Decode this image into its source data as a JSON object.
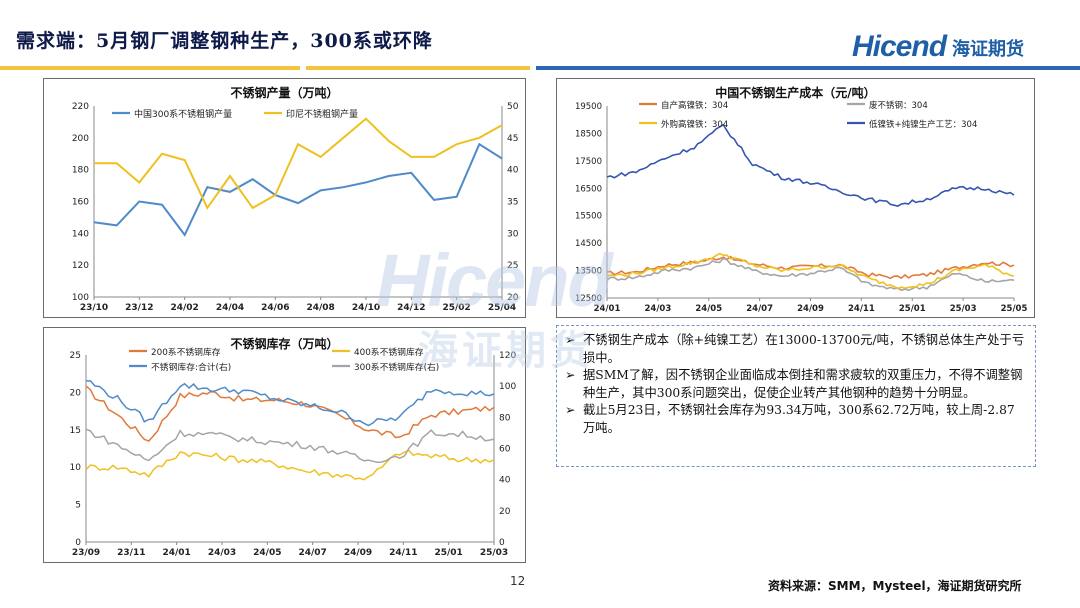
{
  "header": {
    "title": "需求端：5月钢厂调整钢种生产，300系或环降",
    "logo_en": "Hicend",
    "logo_cn": "海证期货"
  },
  "watermark": {
    "en": "Hicend",
    "cn": "海证期货"
  },
  "colors": {
    "blue": "#4f8ac9",
    "yellow": "#f0c020",
    "orange": "#e07a3a",
    "gray": "#a5a5a5",
    "darkblue": "#3456b0",
    "band_yellow": "#f5c342",
    "band_blue": "#2b67b3"
  },
  "charts": {
    "production": {
      "type": "line",
      "title": "不锈钢产量（万吨）",
      "x_labels": [
        "23/10",
        "23/12",
        "24/02",
        "24/04",
        "24/06",
        "24/08",
        "24/10",
        "24/12",
        "25/02",
        "25/04"
      ],
      "y_left": {
        "min": 100,
        "max": 220,
        "ticks": [
          "220",
          "200",
          "180",
          "160",
          "140",
          "120",
          "100"
        ]
      },
      "y_right": {
        "min": 20,
        "max": 50,
        "ticks": [
          "50",
          "45",
          "40",
          "35",
          "30",
          "25",
          "20"
        ]
      },
      "series": [
        {
          "name": "中国300系不锈粗钢产量",
          "axis": "left",
          "color": "#4f8ac9",
          "values": [
            147,
            145,
            160,
            158,
            139,
            169,
            166,
            174,
            164,
            159,
            167,
            169,
            172,
            176,
            178,
            161,
            163,
            196,
            187
          ]
        },
        {
          "name": "印尼不锈粗钢产量",
          "axis": "right",
          "color": "#f0c020",
          "values": [
            41,
            41,
            38,
            42.5,
            41.5,
            34,
            39,
            34,
            36,
            44,
            42,
            45,
            48,
            44.5,
            42,
            42,
            44,
            45,
            47
          ]
        }
      ]
    },
    "cost": {
      "type": "line",
      "title": "中国不锈钢生产成本（元/吨）",
      "x_labels": [
        "24/01",
        "24/03",
        "24/05",
        "24/07",
        "24/09",
        "24/11",
        "25/01",
        "25/03",
        "25/05"
      ],
      "y": {
        "min": 12500,
        "max": 19500,
        "ticks": [
          "19500",
          "18500",
          "17500",
          "16500",
          "15500",
          "14500",
          "13500",
          "12500"
        ]
      },
      "series": [
        {
          "name": "自产高镍铁：304",
          "color": "#e07a3a",
          "values": [
            13400,
            13450,
            13700,
            13800,
            14000,
            13750,
            13600,
            13650,
            13700,
            13350,
            13250,
            13350,
            13600,
            13800,
            13700
          ]
        },
        {
          "name": "废不锈钢：304",
          "color": "#a5a5a5",
          "values": [
            13200,
            13250,
            13500,
            13600,
            13900,
            13500,
            13300,
            13400,
            13600,
            13000,
            12800,
            12900,
            13400,
            13100,
            13150
          ]
        },
        {
          "name": "外购高镍铁：304",
          "color": "#f0c020",
          "values": [
            13300,
            13400,
            13600,
            13800,
            14100,
            13700,
            13500,
            13600,
            13700,
            13200,
            12900,
            13000,
            13500,
            13700,
            13300
          ]
        },
        {
          "name": "低镍铁+纯镍生产工艺：304",
          "color": "#3456b0",
          "values": [
            16900,
            17100,
            17600,
            18000,
            18800,
            17400,
            16900,
            16700,
            16400,
            16100,
            15900,
            16100,
            16500,
            16500,
            16250
          ]
        }
      ]
    },
    "inventory": {
      "type": "line",
      "title": "不锈钢库存（万吨）",
      "x_labels": [
        "23/09",
        "23/11",
        "24/01",
        "24/03",
        "24/05",
        "24/07",
        "24/09",
        "24/11",
        "25/01",
        "25/03"
      ],
      "y_left": {
        "min": 0,
        "max": 25,
        "ticks": [
          "25",
          "20",
          "15",
          "10",
          "5",
          "0"
        ]
      },
      "y_right": {
        "min": 0,
        "max": 120,
        "ticks": [
          "120",
          "100",
          "80",
          "60",
          "40",
          "20",
          "0"
        ]
      },
      "series": [
        {
          "name": "200系不锈钢库存",
          "axis": "left",
          "color": "#e07a3a",
          "values": [
            20.5,
            17,
            13.5,
            19.5,
            20,
            19,
            19,
            18.5,
            17,
            15,
            14,
            17,
            17.5,
            18
          ]
        },
        {
          "name": "400系不锈钢库存",
          "axis": "left",
          "color": "#f0c020",
          "values": [
            10,
            10,
            9,
            12,
            11.5,
            11,
            10.5,
            9.5,
            9,
            8.5,
            12,
            11.5,
            11,
            11
          ]
        },
        {
          "name": "不锈钢库存:合计(右)",
          "axis": "right",
          "color": "#4f8ac9",
          "values": [
            104,
            92,
            77,
            101,
            98,
            97,
            92,
            88,
            84,
            76,
            80,
            98,
            96,
            95
          ]
        },
        {
          "name": "300系不锈钢库存(右)",
          "axis": "right",
          "color": "#a5a5a5",
          "values": [
            72,
            62,
            52,
            70,
            69,
            66,
            64,
            62,
            58,
            52,
            55,
            70,
            69,
            66
          ]
        }
      ]
    }
  },
  "notes": [
    "不锈钢生产成本（除+纯镍工艺）在13000-13700元/吨，不锈钢总体生产处于亏损中。",
    "据SMM了解，因不锈钢企业面临成本倒挂和需求疲软的双重压力，不得不调整钢种生产，其中300系问题突出，促使企业转产其他钢种的趋势十分明显。",
    "截止5月23日，不锈钢社会库存为93.34万吨，300系62.72万吨，较上周-2.87万吨。"
  ],
  "footer": {
    "page": "12",
    "source": "资料来源：SMM，Mysteel，海证期货研究所"
  }
}
